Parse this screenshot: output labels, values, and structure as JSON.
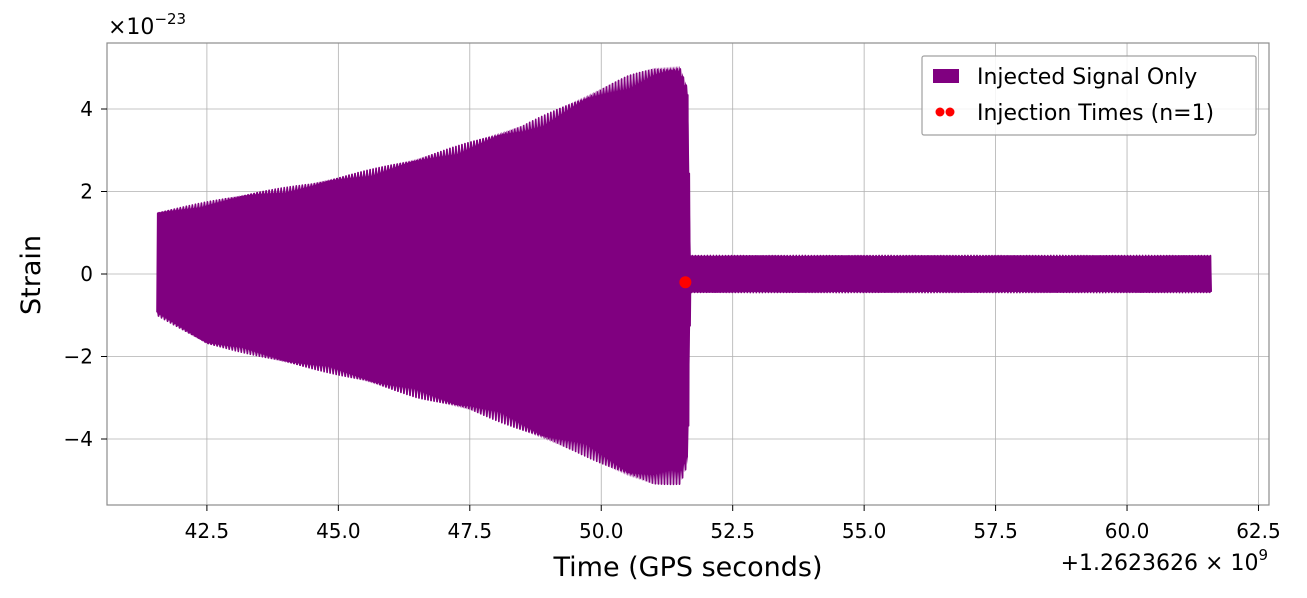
{
  "chart_data": {
    "type": "line",
    "xlabel": "Time (GPS seconds)",
    "ylabel": "Strain",
    "x_offset_label": "+1.2623626 × 10",
    "x_offset_exponent": "9",
    "y_multiplier_label": "×10",
    "y_multiplier_exponent": "−23",
    "xlim": [
      40.6,
      62.7
    ],
    "ylim": [
      -5.6,
      5.6
    ],
    "x_ticks": [
      42.5,
      45.0,
      47.5,
      50.0,
      52.5,
      55.0,
      57.5,
      60.0,
      62.5
    ],
    "x_tick_labels": [
      "42.5",
      "45.0",
      "47.5",
      "50.0",
      "52.5",
      "55.0",
      "57.5",
      "60.0",
      "62.5"
    ],
    "y_ticks": [
      -4,
      -2,
      0,
      2,
      4
    ],
    "y_tick_labels": [
      "−4",
      "−2",
      "0",
      "2",
      "4"
    ],
    "grid": true,
    "legend_position": "top-right",
    "series": [
      {
        "name": "Injected Signal Only",
        "style": "line",
        "color": "#800080",
        "envelope": {
          "t": [
            41.55,
            42.5,
            43.5,
            44.5,
            45.5,
            46.5,
            47.5,
            48.5,
            49.5,
            50.5,
            51.0,
            51.5,
            51.65,
            51.7,
            61.6
          ],
          "upper": [
            1.5,
            1.75,
            2.0,
            2.2,
            2.5,
            2.8,
            3.2,
            3.6,
            4.2,
            4.8,
            5.0,
            5.05,
            4.5,
            0.45,
            0.45
          ],
          "lower": [
            -1.0,
            -1.7,
            -2.0,
            -2.3,
            -2.6,
            -3.0,
            -3.3,
            -3.8,
            -4.3,
            -4.9,
            -5.1,
            -5.1,
            -4.6,
            -0.45,
            -0.45
          ]
        }
      },
      {
        "name": "Injection Times (n=1)",
        "style": "marker",
        "color": "#ff0000",
        "x": [
          51.6
        ],
        "y": [
          -0.2
        ]
      }
    ]
  }
}
